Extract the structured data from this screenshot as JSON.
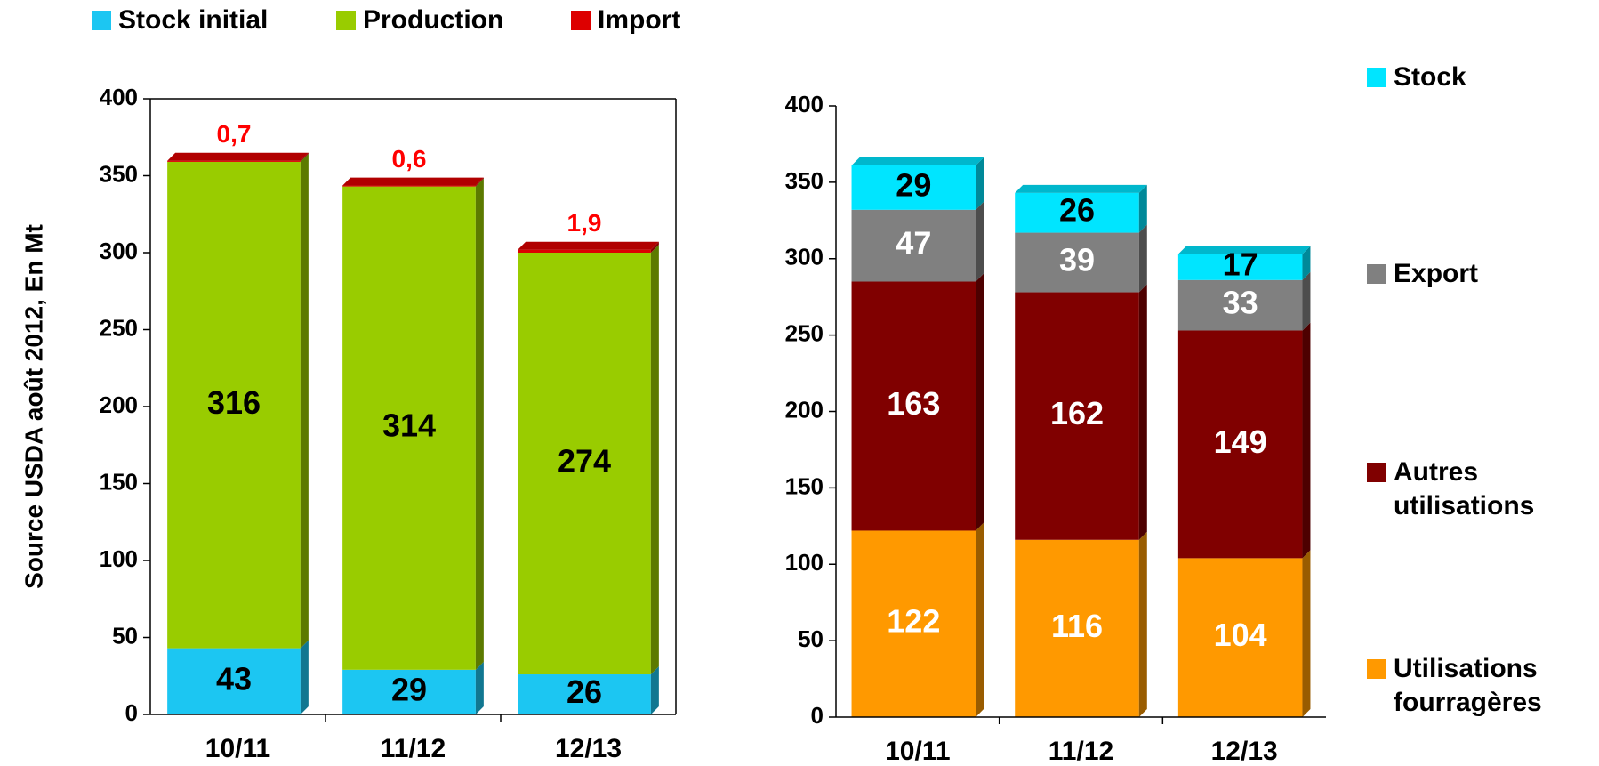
{
  "chart_data": [
    {
      "type": "bar",
      "stacked": true,
      "ylabel": "Source USDA août 2012, En Mt",
      "legend": "top",
      "frame": true,
      "categories": [
        "10/11",
        "11/12",
        "12/13"
      ],
      "series": [
        {
          "name": "Stock initial",
          "color": "#1cc6f2",
          "label_color": "#000000",
          "values": [
            43,
            29,
            26
          ]
        },
        {
          "name": "Production",
          "color": "#99cc00",
          "label_color": "#000000",
          "values": [
            316,
            314,
            274
          ]
        },
        {
          "name": "Import",
          "color": "#dd0000",
          "label_color": "#ff0000",
          "label_position": "above",
          "values": [
            0.7,
            0.6,
            1.9
          ],
          "value_labels": [
            "0,7",
            "0,6",
            "1,9"
          ]
        }
      ],
      "ylim": [
        0,
        400
      ],
      "yticks": [
        0,
        50,
        100,
        150,
        200,
        250,
        300,
        350,
        400
      ]
    },
    {
      "type": "bar",
      "stacked": true,
      "legend": "right",
      "frame": false,
      "categories": [
        "10/11",
        "11/12",
        "12/13"
      ],
      "series": [
        {
          "name": "Utilisations fourragères",
          "color": "#ff9900",
          "label_color": "#ffffff",
          "values": [
            122,
            116,
            104
          ]
        },
        {
          "name": "Autres utilisations",
          "color": "#800000",
          "label_color": "#ffffff",
          "values": [
            163,
            162,
            149
          ]
        },
        {
          "name": "Export",
          "color": "#808080",
          "label_color": "#ffffff",
          "values": [
            47,
            39,
            33
          ]
        },
        {
          "name": "Stock",
          "color": "#00e5ff",
          "label_color": "#000000",
          "values": [
            29,
            26,
            17
          ]
        }
      ],
      "ylim": [
        0,
        400
      ],
      "yticks": [
        0,
        50,
        100,
        150,
        200,
        250,
        300,
        350,
        400
      ]
    }
  ]
}
